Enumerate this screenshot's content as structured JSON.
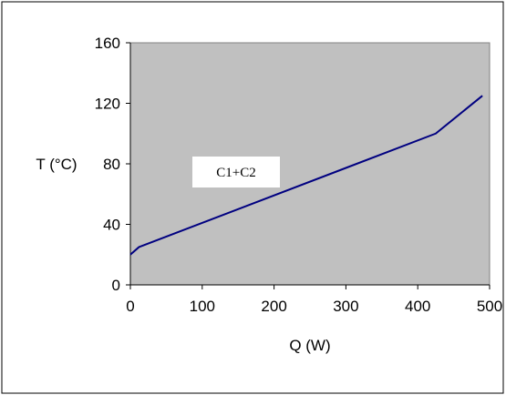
{
  "chart_data": {
    "type": "line",
    "title": "",
    "xlabel": "Q (W)",
    "ylabel": "T (°C)",
    "xlim": [
      0,
      500
    ],
    "ylim": [
      0,
      160
    ],
    "x_ticks": [
      0,
      100,
      200,
      300,
      400,
      500
    ],
    "y_ticks": [
      0,
      40,
      80,
      120,
      160
    ],
    "grid": false,
    "legend": "none",
    "annotations": [
      "C1+C2"
    ],
    "series": [
      {
        "x": [
          0,
          12,
          425,
          490
        ],
        "y": [
          20,
          25,
          100,
          125
        ],
        "color": "#000080"
      }
    ],
    "colors": {
      "plot_background": "#c0c0c0",
      "line": "#000080",
      "annotation_box": "#ffffff"
    }
  }
}
